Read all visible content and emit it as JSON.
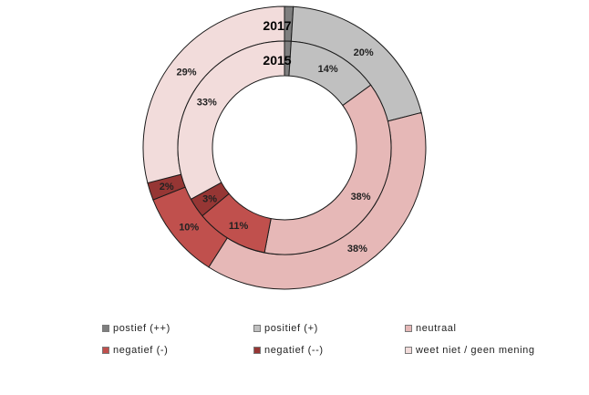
{
  "chart_data": {
    "type": "donut",
    "rings": [
      {
        "label": "2017",
        "values": [
          1,
          20,
          38,
          10,
          2,
          29
        ],
        "value_labels": [
          "",
          "20%",
          "38%",
          "10%",
          "2%",
          "29%"
        ]
      },
      {
        "label": "2015",
        "values": [
          1,
          14,
          38,
          11,
          3,
          33
        ],
        "value_labels": [
          "",
          "14%",
          "38%",
          "11%",
          "3%",
          "33%"
        ]
      }
    ],
    "categories": [
      "postief (++)",
      "positief (+)",
      "neutraal",
      "negatief (-)",
      "negatief (--)",
      "weet niet / geen mening"
    ],
    "colors": [
      "#7f7f7f",
      "#c0c0c0",
      "#e6b8b7",
      "#c0504d",
      "#963634",
      "#f2dcdb"
    ],
    "legend_position": "bottom"
  }
}
